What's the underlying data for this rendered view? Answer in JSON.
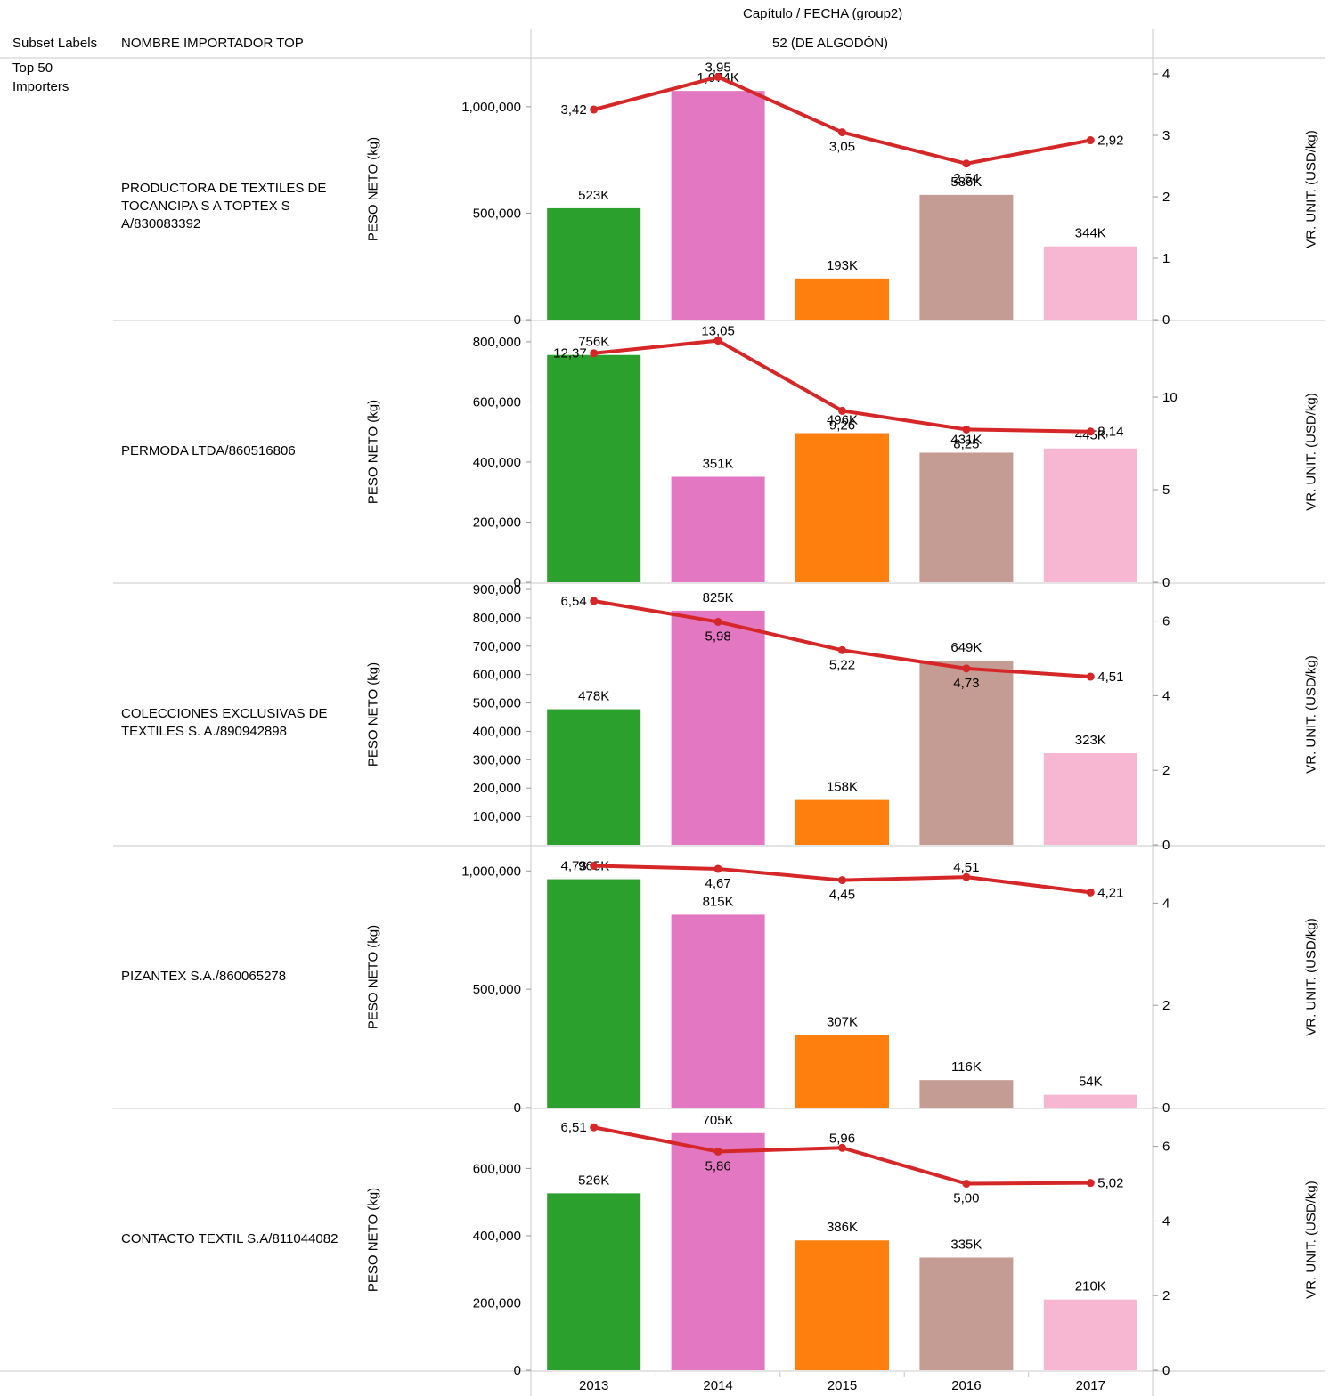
{
  "header": {
    "column_dimension": "Capítulo  /  FECHA (group2)",
    "subset_col": "Subset Labels",
    "importer_col": "NOMBRE IMPORTADOR TOP",
    "chapter": "52 (DE ALGODÓN)",
    "subset_value": "Top 50 Importers"
  },
  "axis_titles": {
    "left": "PESO NETO (kg)",
    "right": "VR. UNIT. (USD/kg)"
  },
  "colors": {
    "2013": "#2ca02c",
    "2014": "#e377c2",
    "2015": "#ff7f0e",
    "2016": "#c49c94",
    "2017": "#f7b6d2",
    "line": "#d62728"
  },
  "chart_data": {
    "type": "bar",
    "categories": [
      "2013",
      "2014",
      "2015",
      "2016",
      "2017"
    ],
    "rows": [
      {
        "importer": "PRODUCTORA DE TEXTILES DE TOCANCIPA S A TOPTEX S A/830083392",
        "peso_neto": [
          523000,
          1074000,
          193000,
          586000,
          344000
        ],
        "peso_labels": [
          "523K",
          "1,074K",
          "193K",
          "586K",
          "344K"
        ],
        "vr_unit": [
          3.42,
          3.95,
          3.05,
          2.54,
          2.92
        ],
        "vr_labels": [
          "3,42",
          "3,95",
          "3,05",
          "2,54",
          "2,92"
        ],
        "left_ticks": [
          0,
          500000,
          1000000
        ],
        "left_tick_labels": [
          "0",
          "500,000",
          "1,000,000"
        ],
        "left_max": 1200000,
        "right_ticks": [
          0,
          1,
          2,
          3,
          4
        ],
        "right_max": 4.16
      },
      {
        "importer": "PERMODA LTDA/860516806",
        "peso_neto": [
          756000,
          351000,
          496000,
          431000,
          445000
        ],
        "peso_labels": [
          "756K",
          "351K",
          "496K",
          "431K",
          "445K"
        ],
        "vr_unit": [
          12.37,
          13.05,
          9.26,
          8.25,
          8.14
        ],
        "vr_labels": [
          "12,37",
          "13,05",
          "9,26",
          "8,25",
          "8,14"
        ],
        "left_ticks": [
          0,
          200000,
          400000,
          600000,
          800000
        ],
        "left_tick_labels": [
          "0",
          "200,000",
          "400,000",
          "600,000",
          "800,000"
        ],
        "left_max": 850000,
        "right_ticks": [
          0,
          5,
          10
        ],
        "right_max": 13.8
      },
      {
        "importer": "COLECCIONES EXCLUSIVAS DE TEXTILES S. A./890942898",
        "peso_neto": [
          478000,
          825000,
          158000,
          649000,
          323000
        ],
        "peso_labels": [
          "478K",
          "825K",
          "158K",
          "649K",
          "323K"
        ],
        "vr_unit": [
          6.54,
          5.98,
          5.22,
          4.73,
          4.51
        ],
        "vr_labels": [
          "6,54",
          "5,98",
          "5,22",
          "4,73",
          "4,51"
        ],
        "left_ticks": [
          100000,
          200000,
          300000,
          400000,
          500000,
          600000,
          700000,
          800000,
          900000
        ],
        "left_tick_labels": [
          "100,000",
          "200,000",
          "300,000",
          "400,000",
          "500,000",
          "600,000",
          "700,000",
          "800,000",
          "900,000"
        ],
        "left_max": 900000,
        "right_ticks": [
          0,
          2,
          4,
          6
        ],
        "right_max": 6.85
      },
      {
        "importer": "PIZANTEX S.A./860065278",
        "peso_neto": [
          965000,
          815000,
          307000,
          116000,
          54000
        ],
        "peso_labels": [
          "965K",
          "815K",
          "307K",
          "116K",
          "54K"
        ],
        "vr_unit": [
          4.73,
          4.67,
          4.45,
          4.51,
          4.21
        ],
        "vr_labels": [
          "4,73",
          "4,67",
          "4,45",
          "4,51",
          "4,21"
        ],
        "left_ticks": [
          0,
          500000,
          1000000
        ],
        "left_tick_labels": [
          "0",
          "500,000",
          "1,000,000"
        ],
        "left_max": 1080000,
        "right_ticks": [
          0,
          2,
          4
        ],
        "right_max": 5.0
      },
      {
        "importer": "CONTACTO TEXTIL S.A/811044082",
        "peso_neto": [
          526000,
          705000,
          386000,
          335000,
          210000
        ],
        "peso_labels": [
          "526K",
          "705K",
          "386K",
          "335K",
          "210K"
        ],
        "vr_unit": [
          6.51,
          5.86,
          5.96,
          5.0,
          5.02
        ],
        "vr_labels": [
          "6,51",
          "5,86",
          "5,96",
          "5,00",
          "5,02"
        ],
        "left_ticks": [
          0,
          200000,
          400000,
          600000
        ],
        "left_tick_labels": [
          "0",
          "200,000",
          "400,000",
          "600,000"
        ],
        "left_max": 760000,
        "right_ticks": [
          0,
          2,
          4,
          6
        ],
        "right_max": 6.85
      }
    ]
  }
}
